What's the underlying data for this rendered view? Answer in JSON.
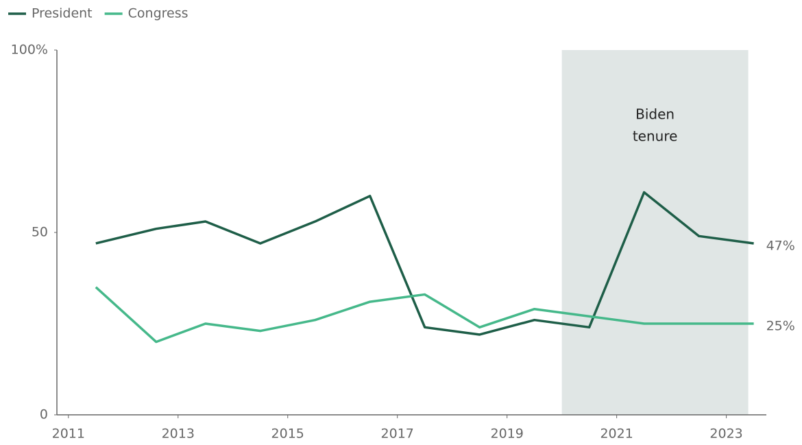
{
  "chart_data": {
    "type": "line",
    "series": [
      {
        "name": "President",
        "color": "#1e5e48",
        "x": [
          2011.5,
          2012.6,
          2013.5,
          2014.5,
          2015.5,
          2016.5,
          2017.5,
          2018.5,
          2019.5,
          2020.5,
          2021.5,
          2022.5,
          2023.5
        ],
        "values": [
          47,
          51,
          53,
          47,
          53,
          60,
          24,
          22,
          26,
          24,
          61,
          49,
          47
        ],
        "value_labels": [
          null,
          null,
          null,
          null,
          null,
          null,
          null,
          null,
          null,
          null,
          null,
          null,
          "47%"
        ]
      },
      {
        "name": "Congress",
        "color": "#45b88a",
        "x": [
          2011.5,
          2012.6,
          2013.5,
          2014.5,
          2015.5,
          2016.5,
          2017.5,
          2018.5,
          2019.5,
          2020.5,
          2021.5,
          2022.5,
          2023.5
        ],
        "values": [
          35,
          20,
          25,
          23,
          26,
          31,
          33,
          24,
          29,
          27,
          25,
          25,
          25
        ],
        "value_labels": [
          null,
          null,
          null,
          null,
          null,
          null,
          null,
          null,
          null,
          null,
          null,
          null,
          "25%"
        ]
      }
    ],
    "xlim": [
      2010.79,
      2023.73
    ],
    "xticks": [
      2011,
      2013,
      2015,
      2017,
      2019,
      2021,
      2023
    ],
    "ylim": [
      0,
      100
    ],
    "yticks": [
      0,
      50,
      {
        "value": 100,
        "label": "100%"
      }
    ],
    "grid": false,
    "legend": "top-left",
    "shade": {
      "x": [
        2020,
        2023.4
      ],
      "color": "#e0e6e5",
      "label": [
        "Biden",
        "tenure"
      ]
    }
  }
}
